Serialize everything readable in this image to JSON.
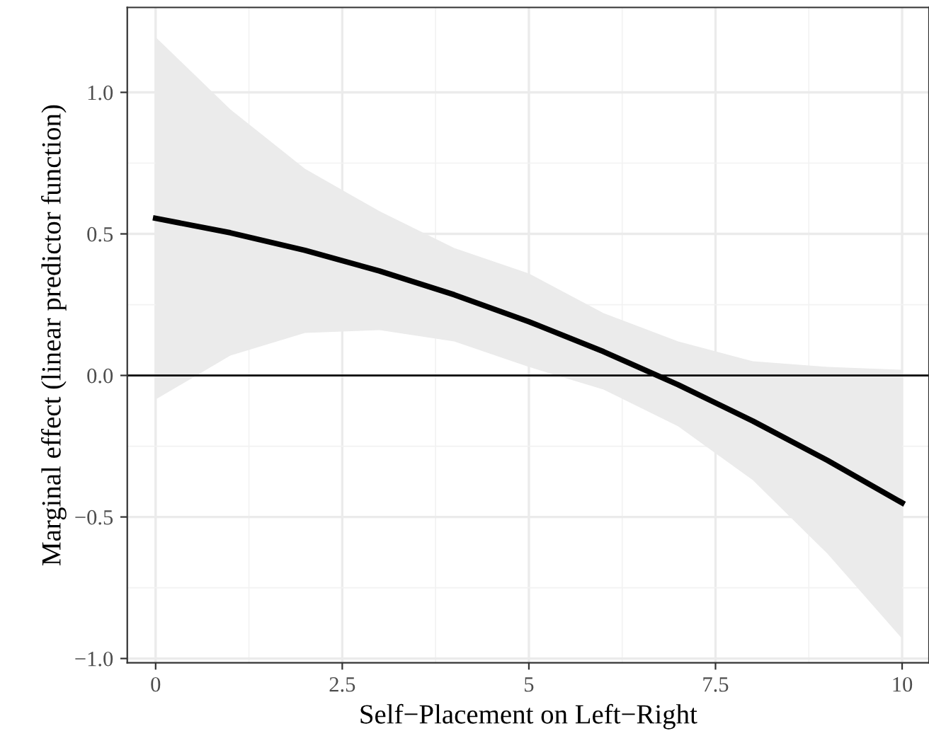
{
  "chart_data": {
    "type": "line",
    "xlabel": "Self−Placement on Left−Right",
    "ylabel": "Marginal effect (linear predictor function)",
    "x": [
      0,
      1,
      2,
      3,
      4,
      5,
      6,
      7,
      8,
      9,
      10
    ],
    "series": [
      {
        "color": "#000000",
        "values": [
          0.555,
          0.504,
          0.442,
          0.369,
          0.285,
          0.19,
          0.084,
          -0.033,
          -0.161,
          -0.3,
          -0.45
        ],
        "lower": [
          -0.085,
          0.07,
          0.15,
          0.16,
          0.12,
          0.03,
          -0.05,
          -0.18,
          -0.37,
          -0.63,
          -0.93
        ],
        "upper": [
          1.195,
          0.94,
          0.73,
          0.58,
          0.45,
          0.36,
          0.22,
          0.12,
          0.05,
          0.03,
          0.02
        ]
      }
    ],
    "xlim": [
      -0.38,
      10.36
    ],
    "ylim": [
      -1.015,
      1.3
    ],
    "xticks": [
      0,
      2.5,
      5,
      7.5,
      10
    ],
    "yticks": [
      {
        "value": -1,
        "label": "−1.0"
      },
      {
        "value": -0.5,
        "label": "−0.5"
      },
      {
        "value": 0,
        "label": "0.0"
      },
      {
        "value": 0.5,
        "label": "0.5"
      },
      {
        "value": 1,
        "label": "1.0"
      }
    ],
    "ref_lines": [
      {
        "axis": "y",
        "value": 0,
        "color": "#000000"
      }
    ],
    "grid": true,
    "marker": "none",
    "line_style": "solid"
  }
}
